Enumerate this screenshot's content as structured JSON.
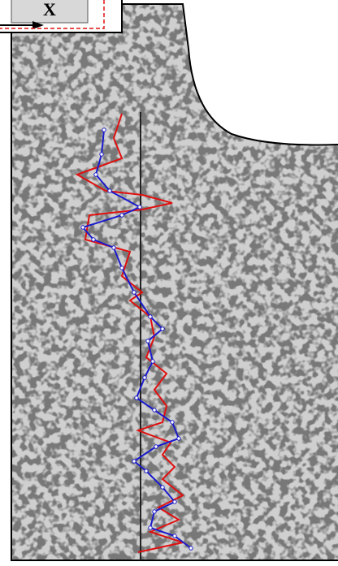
{
  "inset": {
    "axis_label": "X"
  }
}
